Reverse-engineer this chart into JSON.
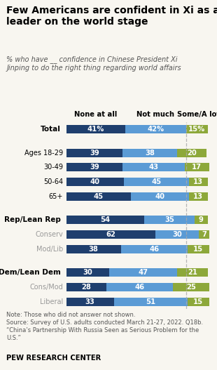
{
  "title": "Few Americans are confident in Xi as a\nleader on the world stage",
  "subtitle": "% who have __ confidence in Chinese President Xi\nJinping to do the right thing regarding world affairs",
  "col_headers": [
    "None at all",
    "Not much",
    "Some/A lot"
  ],
  "categories": [
    "Total",
    "Ages 18-29",
    "30-49",
    "50-64",
    "65+",
    "Rep/Lean Rep",
    "Conserv",
    "Mod/Lib",
    "Dem/Lean Dem",
    "Cons/Mod",
    "Liberal"
  ],
  "bold_rows": [
    0,
    5,
    8
  ],
  "gray_rows": [
    6,
    7,
    9,
    10
  ],
  "none_at_all": [
    41,
    39,
    39,
    40,
    45,
    54,
    62,
    38,
    30,
    28,
    33
  ],
  "not_much": [
    42,
    38,
    43,
    45,
    40,
    35,
    30,
    46,
    47,
    46,
    51
  ],
  "some_a_lot": [
    15,
    20,
    17,
    13,
    13,
    9,
    7,
    15,
    21,
    25,
    15
  ],
  "color_none": "#1f3f6e",
  "color_not_much": "#5b9bd5",
  "color_some": "#8da83a",
  "note": "Note: Those who did not answer not shown.\nSource: Survey of U.S. adults conducted March 21-27, 2022. Q18b.\n“China’s Partnership With Russia Seen as Serious Problem for the\nU.S.”",
  "footer": "PEW RESEARCH CENTER",
  "bg_color": "#f8f6f0"
}
